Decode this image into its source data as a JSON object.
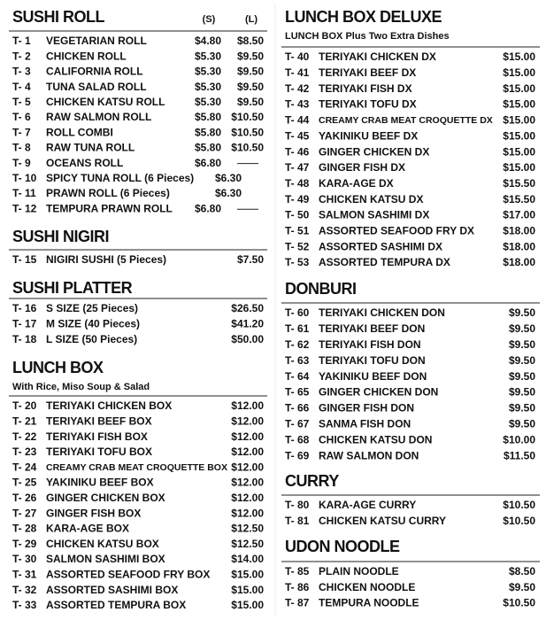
{
  "columns": [
    {
      "sections": [
        {
          "title": "SUSHI ROLL",
          "size_labels": [
            "(S)",
            "(L)"
          ],
          "items": [
            {
              "code": "T- 1",
              "name": "VEGETARIAN ROLL",
              "small": "$4.80",
              "large": "$8.50"
            },
            {
              "code": "T- 2",
              "name": "CHICKEN ROLL",
              "small": "$5.30",
              "large": "$9.50"
            },
            {
              "code": "T- 3",
              "name": "CALIFORNIA ROLL",
              "small": "$5.30",
              "large": "$9.50"
            },
            {
              "code": "T- 4",
              "name": "TUNA SALAD ROLL",
              "small": "$5.30",
              "large": "$9.50"
            },
            {
              "code": "T- 5",
              "name": "CHICKEN KATSU ROLL",
              "small": "$5.30",
              "large": "$9.50"
            },
            {
              "code": "T- 6",
              "name": "RAW SALMON ROLL",
              "small": "$5.80",
              "large": "$10.50"
            },
            {
              "code": "T- 7",
              "name": "ROLL COMBI",
              "small": "$5.80",
              "large": "$10.50"
            },
            {
              "code": "T- 8",
              "name": "RAW TUNA ROLL",
              "small": "$5.80",
              "large": "$10.50"
            },
            {
              "code": "T- 9",
              "name": "OCEANS ROLL",
              "small": "$6.80"
            },
            {
              "code": "T- 10",
              "name": "SPICY TUNA ROLL (6 Pieces)",
              "price": "$6.30"
            },
            {
              "code": "T- 11",
              "name": "PRAWN ROLL (6 Pieces)",
              "price": "$6.30"
            },
            {
              "code": "T- 12",
              "name": "TEMPURA PRAWN ROLL",
              "small": "$6.80"
            }
          ]
        },
        {
          "title": "SUSHI NIGIRI",
          "items": [
            {
              "code": "T- 15",
              "name": "NIGIRI SUSHI (5 Pieces)",
              "price": "$7.50"
            }
          ]
        },
        {
          "title": "SUSHI PLATTER",
          "items": [
            {
              "code": "T- 16",
              "name": "S  SIZE (25 Pieces)",
              "price": "$26.50"
            },
            {
              "code": "T- 17",
              "name": "M  SIZE (40 Pieces)",
              "price": "$41.20"
            },
            {
              "code": "T- 18",
              "name": "L  SIZE (50 Pieces)",
              "price": "$50.00"
            }
          ]
        },
        {
          "title": "LUNCH BOX",
          "subtitle": "With Rice, Miso Soup & Salad",
          "items": [
            {
              "code": "T- 20",
              "name": "TERIYAKI CHICKEN BOX",
              "price": "$12.00"
            },
            {
              "code": "T- 21",
              "name": "TERIYAKI BEEF BOX",
              "price": "$12.00"
            },
            {
              "code": "T- 22",
              "name": "TERIYAKI FISH BOX",
              "price": "$12.00"
            },
            {
              "code": "T- 23",
              "name": "TERIYAKI TOFU BOX",
              "price": "$12.00"
            },
            {
              "code": "T- 24",
              "name": "CREAMY CRAB MEAT CROQUETTE BOX",
              "price": "$12.00"
            },
            {
              "code": "T- 25",
              "name": "YAKINIKU BEEF BOX",
              "price": "$12.00"
            },
            {
              "code": "T- 26",
              "name": "GINGER CHICKEN BOX",
              "price": "$12.00"
            },
            {
              "code": "T- 27",
              "name": "GINGER FISH BOX",
              "price": "$12.00"
            },
            {
              "code": "T- 28",
              "name": "KARA-AGE BOX",
              "price": "$12.50"
            },
            {
              "code": "T- 29",
              "name": "CHICKEN KATSU BOX",
              "price": "$12.50"
            },
            {
              "code": "T- 30",
              "name": "SALMON SASHIMI BOX",
              "price": "$14.00"
            },
            {
              "code": "T- 31",
              "name": "ASSORTED SEAFOOD FRY BOX",
              "price": "$15.00"
            },
            {
              "code": "T- 32",
              "name": "ASSORTED SASHIMI BOX",
              "price": "$15.00"
            },
            {
              "code": "T- 33",
              "name": "ASSORTED TEMPURA BOX",
              "price": "$15.00"
            }
          ]
        }
      ]
    },
    {
      "sections": [
        {
          "title": "LUNCH BOX DELUXE",
          "subtitle": "LUNCH BOX Plus Two Extra Dishes",
          "items": [
            {
              "code": "T- 40",
              "name": "TERIYAKI CHICKEN DX",
              "price": "$15.00"
            },
            {
              "code": "T- 41",
              "name": "TERIYAKI BEEF DX",
              "price": "$15.00"
            },
            {
              "code": "T- 42",
              "name": "TERIYAKI FISH DX",
              "price": "$15.00"
            },
            {
              "code": "T- 43",
              "name": "TERIYAKI TOFU DX",
              "price": "$15.00"
            },
            {
              "code": "T- 44",
              "name": "CREAMY CRAB MEAT CROQUETTE DX",
              "price": "$15.00"
            },
            {
              "code": "T- 45",
              "name": "YAKINIKU BEEF DX",
              "price": "$15.00"
            },
            {
              "code": "T- 46",
              "name": "GINGER CHICKEN DX",
              "price": "$15.00"
            },
            {
              "code": "T- 47",
              "name": "GINGER FISH DX",
              "price": "$15.00"
            },
            {
              "code": "T- 48",
              "name": "KARA-AGE DX",
              "price": "$15.50"
            },
            {
              "code": "T- 49",
              "name": "CHICKEN KATSU DX",
              "price": "$15.50"
            },
            {
              "code": "T- 50",
              "name": "SALMON SASHIMI DX",
              "price": "$17.00"
            },
            {
              "code": "T- 51",
              "name": "ASSORTED SEAFOOD FRY DX",
              "price": "$18.00"
            },
            {
              "code": "T- 52",
              "name": "ASSORTED SASHIMI DX",
              "price": "$18.00"
            },
            {
              "code": "T- 53",
              "name": "ASSORTED TEMPURA DX",
              "price": "$18.00"
            }
          ]
        },
        {
          "title": "DONBURI",
          "items": [
            {
              "code": "T- 60",
              "name": "TERIYAKI CHICKEN DON",
              "price": "$9.50"
            },
            {
              "code": "T- 61",
              "name": "TERIYAKI BEEF DON",
              "price": "$9.50"
            },
            {
              "code": "T- 62",
              "name": "TERIYAKI FISH DON",
              "price": "$9.50"
            },
            {
              "code": "T- 63",
              "name": "TERIYAKI TOFU DON",
              "price": "$9.50"
            },
            {
              "code": "T- 64",
              "name": "YAKINIKU BEEF DON",
              "price": "$9.50"
            },
            {
              "code": "T- 65",
              "name": "GINGER CHICKEN DON",
              "price": "$9.50"
            },
            {
              "code": "T- 66",
              "name": "GINGER FISH DON",
              "price": "$9.50"
            },
            {
              "code": "T- 67",
              "name": "SANMA FISH DON",
              "price": "$9.50"
            },
            {
              "code": "T- 68",
              "name": "CHICKEN KATSU DON",
              "price": "$10.00"
            },
            {
              "code": "T- 69",
              "name": "RAW SALMON DON",
              "price": "$11.50"
            }
          ]
        },
        {
          "title": "CURRY",
          "items": [
            {
              "code": "T- 80",
              "name": "KARA-AGE CURRY",
              "price": "$10.50"
            },
            {
              "code": "T- 81",
              "name": "CHICKEN KATSU CURRY",
              "price": "$10.50"
            }
          ]
        },
        {
          "title": "UDON NOODLE",
          "items": [
            {
              "code": "T- 85",
              "name": "PLAIN NOODLE",
              "price": "$8.50"
            },
            {
              "code": "T- 86",
              "name": "CHICKEN NOODLE",
              "price": "$9.50"
            },
            {
              "code": "T- 87",
              "name": "TEMPURA NOODLE",
              "price": "$10.50"
            }
          ]
        }
      ]
    }
  ]
}
